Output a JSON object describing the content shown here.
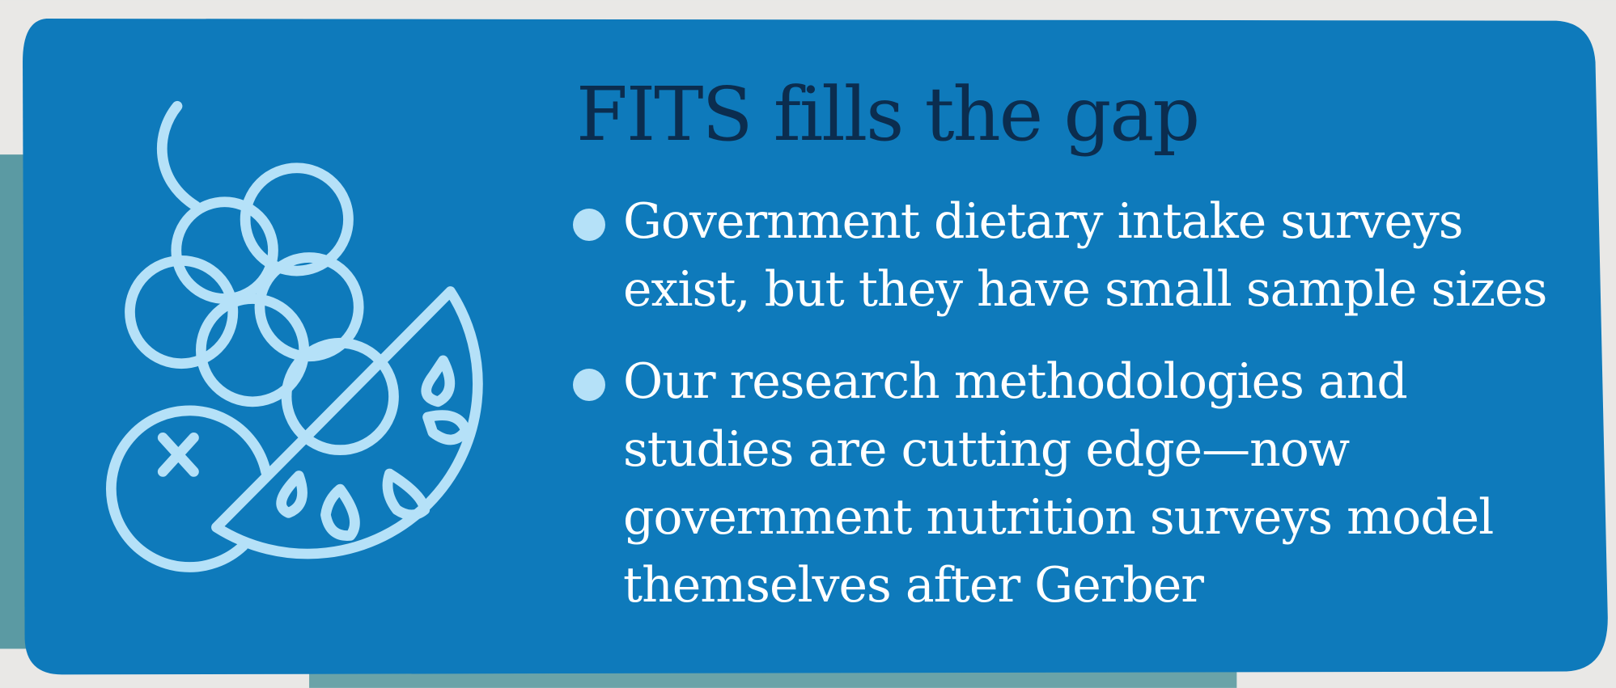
{
  "title": "FITS fills the gap",
  "bullets": [
    "Government dietary intake surveys exist, but they have small sample sizes",
    "Our research methodologies and studies are cutting edge—now government nutrition surveys model themselves after Gerber"
  ]
}
